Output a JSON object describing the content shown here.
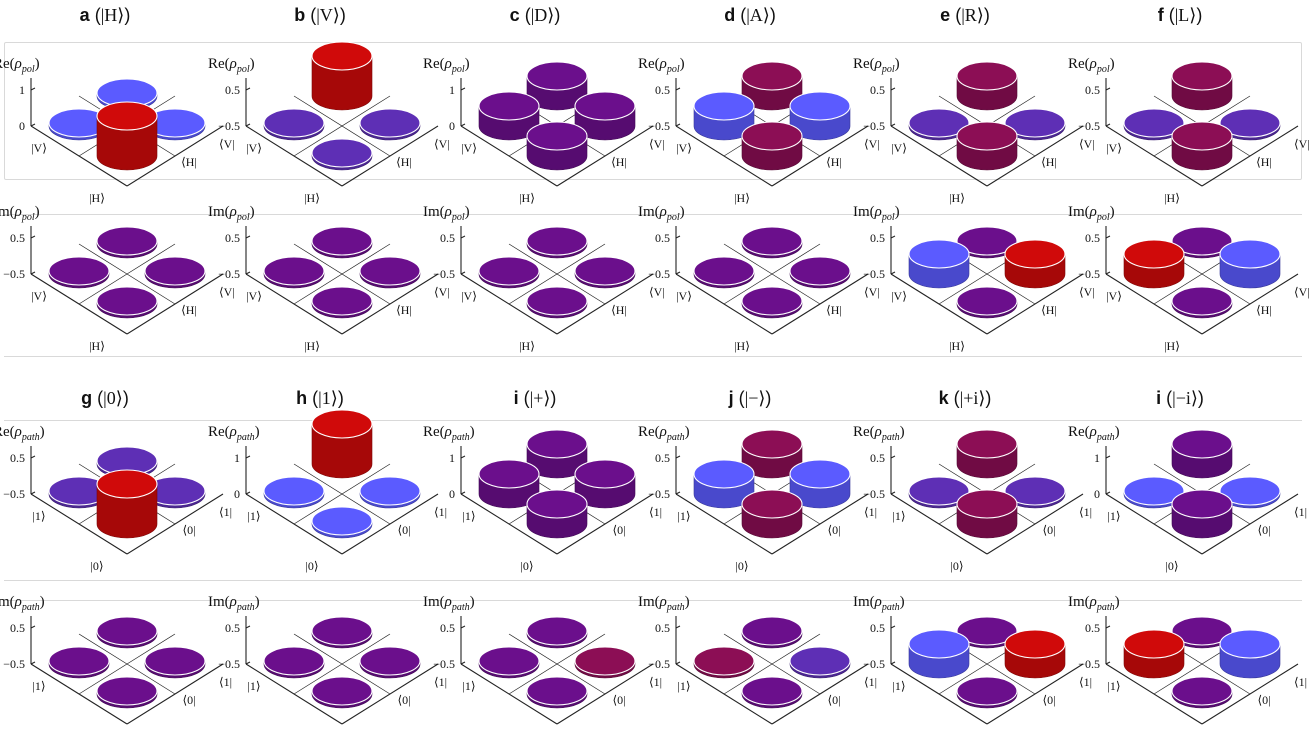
{
  "colors": {
    "red": "#d00a0a",
    "blue": "#5b5bff",
    "purple": "#6b0f8c",
    "crimson": "#8c0e55",
    "violet": "#5e2fb5",
    "axis": "#222222"
  },
  "scale": {
    "top": "1",
    "mid": "0.5",
    "zero": "0",
    "neg": "−0.5"
  },
  "sections": [
    {
      "id": "pol",
      "re_prefix": "Re(",
      "im_prefix": "Im(",
      "rho": "ρ",
      "sub": "pol",
      "suffix": ")",
      "k_left": "|V⟩",
      "k_right": "|H⟩",
      "b_right": "⟨V|",
      "b_left": "⟨H|",
      "panels": [
        {
          "letter": "a",
          "state": "|H⟩",
          "re": {
            "ticks": [
              "1",
              "0"
            ],
            "cells": {
              "back": [
                "blue",
                0
              ],
              "left": [
                "blue",
                0
              ],
              "right": [
                "blue",
                0
              ],
              "front": [
                "red",
                1
              ]
            }
          },
          "im": {
            "ticks": [
              "0.5",
              "−0.5"
            ],
            "cells": {
              "back": [
                "purple",
                0
              ],
              "left": [
                "purple",
                0
              ],
              "right": [
                "purple",
                0
              ],
              "front": [
                "purple",
                0
              ]
            }
          }
        },
        {
          "letter": "b",
          "state": "|V⟩",
          "re": {
            "ticks": [
              "0.5",
              "−0.5"
            ],
            "cells": {
              "back": [
                "red",
                1
              ],
              "left": [
                "violet",
                0
              ],
              "right": [
                "violet",
                0
              ],
              "front": [
                "violet",
                0
              ]
            }
          },
          "im": {
            "ticks": [
              "0.5",
              "−0.5"
            ],
            "cells": {
              "back": [
                "purple",
                0
              ],
              "left": [
                "purple",
                0
              ],
              "right": [
                "purple",
                0
              ],
              "front": [
                "purple",
                0
              ]
            }
          }
        },
        {
          "letter": "c",
          "state": "|D⟩",
          "re": {
            "ticks": [
              "1",
              "0"
            ],
            "cells": {
              "back": [
                "purple",
                0.5
              ],
              "left": [
                "purple",
                0.5
              ],
              "right": [
                "purple",
                0.5
              ],
              "front": [
                "purple",
                0.5
              ]
            }
          },
          "im": {
            "ticks": [
              "0.5",
              "−0.5"
            ],
            "cells": {
              "back": [
                "purple",
                0
              ],
              "left": [
                "purple",
                0
              ],
              "right": [
                "purple",
                0
              ],
              "front": [
                "purple",
                0
              ]
            }
          }
        },
        {
          "letter": "d",
          "state": "|A⟩",
          "re": {
            "ticks": [
              "0.5",
              "−0.5"
            ],
            "cells": {
              "back": [
                "crimson",
                0.5
              ],
              "left": [
                "blue",
                -0.5
              ],
              "right": [
                "blue",
                -0.5
              ],
              "front": [
                "crimson",
                0.5
              ]
            }
          },
          "im": {
            "ticks": [
              "0.5",
              "−0.5"
            ],
            "cells": {
              "back": [
                "purple",
                0
              ],
              "left": [
                "purple",
                0
              ],
              "right": [
                "purple",
                0
              ],
              "front": [
                "purple",
                0
              ]
            }
          }
        },
        {
          "letter": "e",
          "state": "|R⟩",
          "re": {
            "ticks": [
              "0.5",
              "−0.5"
            ],
            "cells": {
              "back": [
                "crimson",
                0.5
              ],
              "left": [
                "violet",
                0
              ],
              "right": [
                "violet",
                0
              ],
              "front": [
                "crimson",
                0.5
              ]
            }
          },
          "im": {
            "ticks": [
              "0.5",
              "−0.5"
            ],
            "cells": {
              "back": [
                "purple",
                0
              ],
              "left": [
                "blue",
                -0.5
              ],
              "right": [
                "red",
                0.5
              ],
              "front": [
                "purple",
                0
              ]
            }
          }
        },
        {
          "letter": "f",
          "state": "|L⟩",
          "re": {
            "ticks": [
              "0.5",
              "−0.5"
            ],
            "cells": {
              "back": [
                "crimson",
                0.5
              ],
              "left": [
                "violet",
                0
              ],
              "right": [
                "violet",
                0
              ],
              "front": [
                "crimson",
                0.5
              ]
            }
          },
          "im": {
            "ticks": [
              "0.5",
              "−0.5"
            ],
            "cells": {
              "back": [
                "purple",
                0
              ],
              "left": [
                "red",
                0.5
              ],
              "right": [
                "blue",
                -0.5
              ],
              "front": [
                "purple",
                0
              ]
            }
          }
        }
      ]
    },
    {
      "id": "path",
      "re_prefix": "Re(",
      "im_prefix": "Im(",
      "rho": "ρ",
      "sub": "path",
      "suffix": ")",
      "k_left": "|1⟩",
      "k_right": "|0⟩",
      "b_right": "⟨1|",
      "b_left": "⟨0|",
      "panels": [
        {
          "letter": "g",
          "state": "|0⟩",
          "re": {
            "ticks": [
              "0.5",
              "−0.5"
            ],
            "cells": {
              "back": [
                "violet",
                0
              ],
              "left": [
                "violet",
                0
              ],
              "right": [
                "violet",
                0
              ],
              "front": [
                "red",
                1
              ]
            }
          },
          "im": {
            "ticks": [
              "0.5",
              "−0.5"
            ],
            "cells": {
              "back": [
                "purple",
                0
              ],
              "left": [
                "purple",
                0
              ],
              "right": [
                "purple",
                0
              ],
              "front": [
                "purple",
                0
              ]
            }
          }
        },
        {
          "letter": "h",
          "state": "|1⟩",
          "re": {
            "ticks": [
              "1",
              "0"
            ],
            "cells": {
              "back": [
                "red",
                1
              ],
              "left": [
                "blue",
                0
              ],
              "right": [
                "blue",
                0
              ],
              "front": [
                "blue",
                0
              ]
            }
          },
          "im": {
            "ticks": [
              "0.5",
              "−0.5"
            ],
            "cells": {
              "back": [
                "purple",
                0
              ],
              "left": [
                "purple",
                0
              ],
              "right": [
                "purple",
                0
              ],
              "front": [
                "purple",
                0
              ]
            }
          }
        },
        {
          "letter": "i",
          "state": "|+⟩",
          "re": {
            "ticks": [
              "1",
              "0"
            ],
            "cells": {
              "back": [
                "purple",
                0.5
              ],
              "left": [
                "purple",
                0.5
              ],
              "right": [
                "purple",
                0.5
              ],
              "front": [
                "purple",
                0.5
              ]
            }
          },
          "im": {
            "ticks": [
              "0.5",
              "−0.5"
            ],
            "cells": {
              "back": [
                "purple",
                0
              ],
              "left": [
                "purple",
                0
              ],
              "right": [
                "crimson",
                0
              ],
              "front": [
                "purple",
                0
              ]
            }
          }
        },
        {
          "letter": "j",
          "state": "|−⟩",
          "re": {
            "ticks": [
              "0.5",
              "−0.5"
            ],
            "cells": {
              "back": [
                "crimson",
                0.5
              ],
              "left": [
                "blue",
                -0.5
              ],
              "right": [
                "blue",
                -0.5
              ],
              "front": [
                "crimson",
                0.5
              ]
            }
          },
          "im": {
            "ticks": [
              "0.5",
              "−0.5"
            ],
            "cells": {
              "back": [
                "purple",
                0
              ],
              "left": [
                "crimson",
                0
              ],
              "right": [
                "violet",
                0
              ],
              "front": [
                "purple",
                0
              ]
            }
          }
        },
        {
          "letter": "k",
          "state": "|+i⟩",
          "re": {
            "ticks": [
              "0.5",
              "−0.5"
            ],
            "cells": {
              "back": [
                "crimson",
                0.5
              ],
              "left": [
                "violet",
                0
              ],
              "right": [
                "violet",
                0
              ],
              "front": [
                "crimson",
                0.5
              ]
            }
          },
          "im": {
            "ticks": [
              "0.5",
              "−0.5"
            ],
            "cells": {
              "back": [
                "purple",
                0
              ],
              "left": [
                "blue",
                -0.5
              ],
              "right": [
                "red",
                0.5
              ],
              "front": [
                "purple",
                0
              ]
            }
          }
        },
        {
          "letter": "i",
          "state": "|−i⟩",
          "re": {
            "ticks": [
              "1",
              "0"
            ],
            "cells": {
              "back": [
                "purple",
                0.5
              ],
              "left": [
                "blue",
                0
              ],
              "right": [
                "blue",
                0
              ],
              "front": [
                "purple",
                0.5
              ]
            }
          },
          "im": {
            "ticks": [
              "0.5",
              "−0.5"
            ],
            "cells": {
              "back": [
                "purple",
                0
              ],
              "left": [
                "red",
                0.5
              ],
              "right": [
                "blue",
                -0.5
              ],
              "front": [
                "purple",
                0
              ]
            }
          }
        }
      ]
    }
  ]
}
